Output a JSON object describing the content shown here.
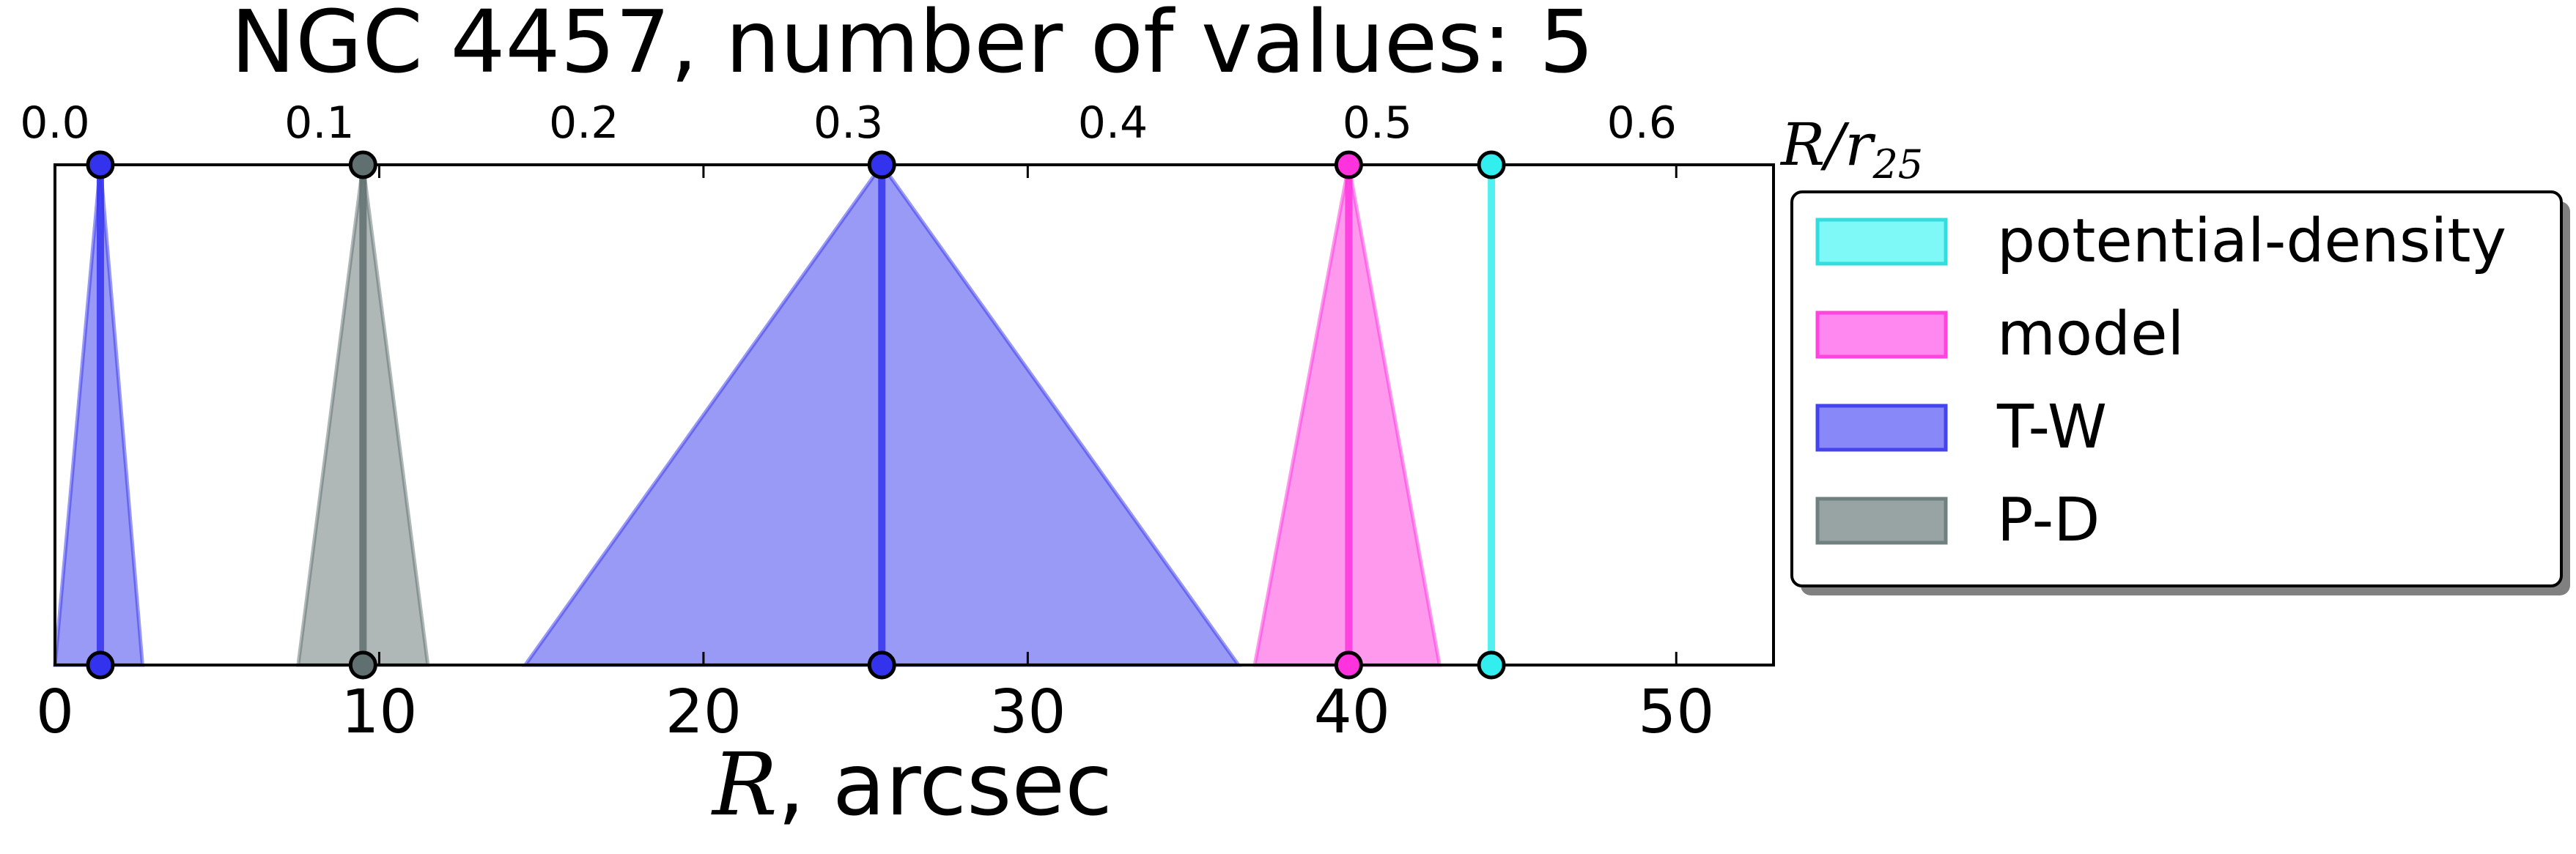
{
  "chart_data": {
    "type": "area",
    "title": "NGC 4457, number of values: 5",
    "xlabel": "R, arcsec",
    "xlabel_symbol": "R",
    "xlabel_rest": ", arcsec",
    "xlim": [
      0,
      53
    ],
    "xticks": [
      "0",
      "10",
      "20",
      "30",
      "40",
      "50"
    ],
    "xtick_values": [
      0,
      10,
      20,
      30,
      40,
      50
    ],
    "top_axis": {
      "label_symbol": "R/r",
      "label_subscript": "25",
      "xlim": [
        0,
        0.6498
      ],
      "ticks": [
        "0.0",
        "0.1",
        "0.2",
        "0.3",
        "0.4",
        "0.5",
        "0.6"
      ],
      "tick_values": [
        0.0,
        0.1,
        0.2,
        0.3,
        0.4,
        0.5,
        0.6
      ]
    },
    "series": [
      {
        "name": "T-W",
        "color": "#3333ee",
        "markers": [
          {
            "center": 1.4,
            "left": 0.0,
            "right": 2.7
          },
          {
            "center": 25.5,
            "left": 14.5,
            "right": 36.5
          }
        ]
      },
      {
        "name": "P-D",
        "color": "#607070",
        "markers": [
          {
            "center": 9.5,
            "left": 7.5,
            "right": 11.5
          }
        ]
      },
      {
        "name": "model",
        "color": "#ff33dd",
        "markers": [
          {
            "center": 39.9,
            "left": 37.0,
            "right": 42.7
          }
        ]
      },
      {
        "name": "potential-density",
        "color": "#33eeee",
        "markers": [
          {
            "center": 44.3,
            "left": 44.3,
            "right": 44.3
          }
        ]
      }
    ],
    "legend": {
      "placement": "right",
      "entries": [
        {
          "label": "potential-density",
          "fill": "#7ff8f8",
          "edge": "#33dddd"
        },
        {
          "label": "model",
          "fill": "#ff88f0",
          "edge": "#ff44dd"
        },
        {
          "label": "T-W",
          "fill": "#8888f8",
          "edge": "#4444ee"
        },
        {
          "label": "P-D",
          "fill": "#98a4a4",
          "edge": "#708080"
        }
      ]
    },
    "grid": false
  }
}
